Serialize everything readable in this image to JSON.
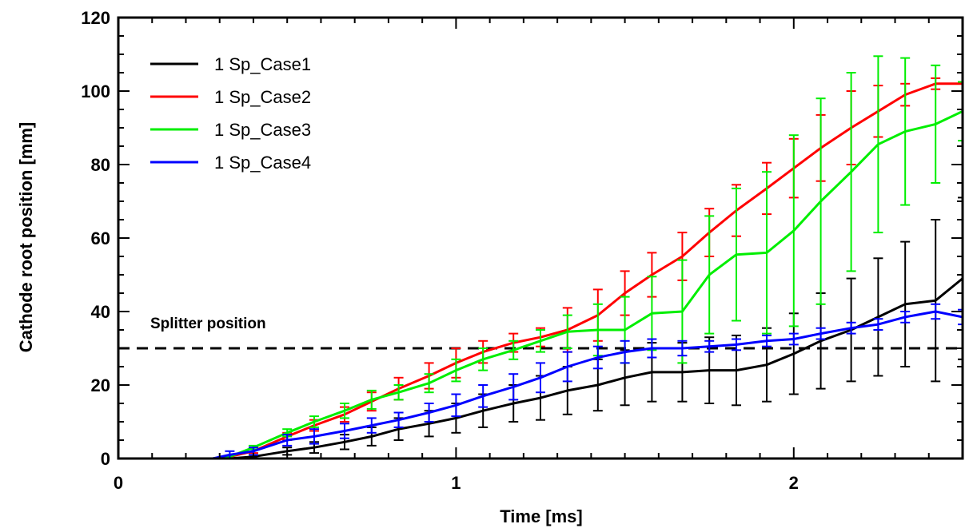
{
  "chart_data": {
    "type": "line",
    "title": "",
    "xlabel": "Time [ms]",
    "ylabel": "Cathode root position [mm]",
    "xlim": [
      0,
      2.5
    ],
    "ylim": [
      0,
      120
    ],
    "xticks": [
      0,
      1,
      2
    ],
    "xtick_labels": [
      "0",
      "1",
      "2"
    ],
    "yticks": [
      0,
      20,
      40,
      60,
      80,
      100,
      120
    ],
    "ytick_labels": [
      "0",
      "20",
      "40",
      "60",
      "80",
      "100",
      "120"
    ],
    "grid": false,
    "legend_position": "top-left",
    "annotation": {
      "text": "Splitter position",
      "y": 30
    },
    "series": [
      {
        "name": "1 Sp_Case1",
        "color": "#000000",
        "x": [
          0.28,
          0.33,
          0.4,
          0.5,
          0.58,
          0.67,
          0.75,
          0.83,
          0.92,
          1.0,
          1.08,
          1.17,
          1.25,
          1.33,
          1.42,
          1.5,
          1.58,
          1.67,
          1.75,
          1.83,
          1.92,
          2.0,
          2.08,
          2.17,
          2.25,
          2.33,
          2.42,
          2.5
        ],
        "values": [
          0,
          0,
          0.5,
          2,
          3,
          4.5,
          6,
          8,
          9.5,
          11,
          13,
          15,
          16.5,
          18.5,
          20,
          22,
          23.5,
          23.5,
          24,
          24,
          25.5,
          28.5,
          32,
          35,
          38.5,
          42,
          43,
          49
        ],
        "err": [
          0,
          0,
          0,
          1,
          1.5,
          2,
          2.5,
          3,
          3.5,
          4,
          4.5,
          5,
          6,
          6.5,
          7,
          7.5,
          8,
          8,
          9,
          9.5,
          10,
          11,
          13,
          14,
          16,
          17,
          22,
          22
        ]
      },
      {
        "name": "1 Sp_Case2",
        "color": "#ff0000",
        "x": [
          0.28,
          0.33,
          0.4,
          0.5,
          0.58,
          0.67,
          0.75,
          0.83,
          0.92,
          1.0,
          1.08,
          1.17,
          1.25,
          1.33,
          1.42,
          1.5,
          1.58,
          1.67,
          1.75,
          1.83,
          1.92,
          2.0,
          2.08,
          2.17,
          2.25,
          2.33,
          2.42,
          2.5
        ],
        "values": [
          0,
          0.5,
          2,
          6,
          9,
          12,
          15.5,
          19,
          22.5,
          26,
          29,
          31.5,
          33,
          35,
          39,
          45,
          50,
          55,
          61.5,
          67.5,
          73.5,
          79,
          84.5,
          90,
          94.5,
          99,
          102,
          102
        ],
        "err": [
          0,
          0,
          0.5,
          1,
          1.5,
          2,
          2.5,
          3,
          3.5,
          4,
          3,
          2.5,
          2.5,
          6,
          7,
          6,
          6,
          6.5,
          6.5,
          7,
          7,
          8,
          9,
          10,
          7,
          3,
          1.5,
          0
        ]
      },
      {
        "name": "1 Sp_Case3",
        "color": "#00ee00",
        "x": [
          0.28,
          0.33,
          0.4,
          0.5,
          0.58,
          0.67,
          0.75,
          0.83,
          0.92,
          1.0,
          1.08,
          1.17,
          1.25,
          1.33,
          1.42,
          1.5,
          1.58,
          1.67,
          1.75,
          1.83,
          1.92,
          2.0,
          2.08,
          2.17,
          2.25,
          2.33,
          2.42,
          2.5
        ],
        "values": [
          0,
          0.5,
          3,
          7,
          10,
          13,
          16,
          18,
          20.5,
          24,
          27,
          29.5,
          32,
          34.5,
          35,
          35,
          39.5,
          40,
          50,
          55.5,
          56,
          62,
          70,
          78,
          85.5,
          89,
          91,
          94.5
        ],
        "err": [
          0,
          0,
          0.5,
          1,
          1.5,
          2,
          2.5,
          2,
          2.5,
          3,
          3,
          2.5,
          3,
          4.5,
          7,
          9,
          10,
          14,
          16,
          18,
          22,
          26,
          28,
          27,
          24,
          20,
          16,
          8
        ]
      },
      {
        "name": "1 Sp_Case4",
        "color": "#0000ff",
        "x": [
          0.28,
          0.33,
          0.4,
          0.5,
          0.58,
          0.67,
          0.75,
          0.83,
          0.92,
          1.0,
          1.08,
          1.17,
          1.25,
          1.33,
          1.42,
          1.5,
          1.58,
          1.67,
          1.75,
          1.83,
          1.92,
          2.0,
          2.08,
          2.17,
          2.25,
          2.33,
          2.42,
          2.5
        ],
        "values": [
          0,
          1,
          2,
          5,
          6,
          7.5,
          9,
          10.5,
          12.5,
          14.5,
          17,
          19.5,
          22,
          25,
          27.5,
          29,
          30,
          30,
          30.5,
          31,
          32,
          32.5,
          34,
          35.5,
          36.5,
          38.5,
          40,
          38.5
        ],
        "err": [
          0,
          1,
          1,
          1.5,
          2,
          2,
          2,
          2,
          2.5,
          3,
          3,
          3.5,
          4,
          4,
          3,
          3,
          2.5,
          2,
          1.5,
          1.5,
          1.5,
          1.5,
          1.5,
          1.5,
          1.5,
          1.5,
          2,
          2
        ]
      }
    ]
  }
}
